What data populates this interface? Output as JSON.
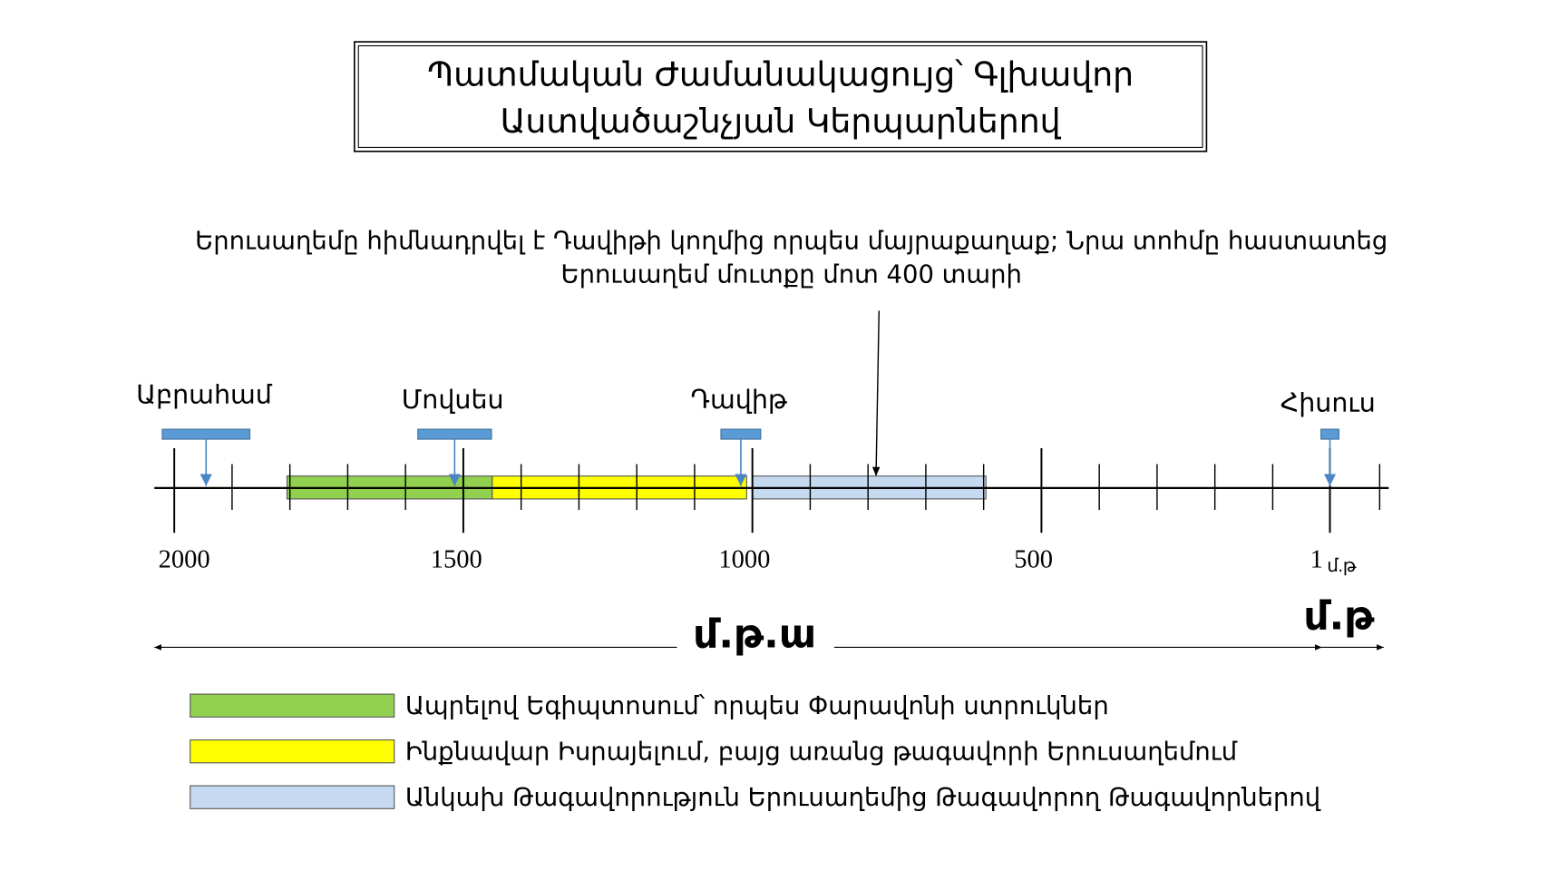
{
  "title": {
    "lines": [
      "Պատմական Ժամանակացույց՝ Գլխավոր",
      "Աստվածաշնչյան Կերպարներով"
    ]
  },
  "annotation": {
    "lines": [
      "Երուսաղեմը հիմնադրվել է Դավիթի կողմից որպես մայրաքաղաք; Նրա տոհմը հաստատեց",
      "Երուսաղեմ մուտքը մոտ 400 տարի"
    ]
  },
  "people": [
    {
      "name": "Աբրահամ",
      "year": 1945
    },
    {
      "name": "Մովսես",
      "year": 1515
    },
    {
      "name": "Դավիթ",
      "year": 1020
    },
    {
      "name": "Հիսուս",
      "year": 1
    }
  ],
  "timeline": {
    "ticks": [
      2000,
      1500,
      1000,
      500,
      1
    ],
    "minor_ticks": [
      1900,
      1800,
      1700,
      1600,
      1400,
      1300,
      1200,
      1100,
      900,
      800,
      700,
      600,
      400,
      300,
      200,
      100,
      -85
    ],
    "ad_label": "մ.թ",
    "periods": [
      {
        "label": "Ապրելով Եգիպտոսում՝ որպես Փարավոնի ստրուկներ",
        "color": "#92d050",
        "from": 1805,
        "to": 1450
      },
      {
        "label": "Ինքնավար Իսրայելում, բայց առանց թագավորի Երուսաղեմում",
        "color": "#ffff00",
        "from": 1450,
        "to": 1010
      },
      {
        "label": "Անկախ Թագավորություն Երուսաղեմից Թագավորող Թագավորներով",
        "color": "#c5d9f1",
        "from": 1000,
        "to": 596
      }
    ]
  },
  "eras": {
    "bc": "մ.թ.ա",
    "ad": "մ.թ"
  }
}
